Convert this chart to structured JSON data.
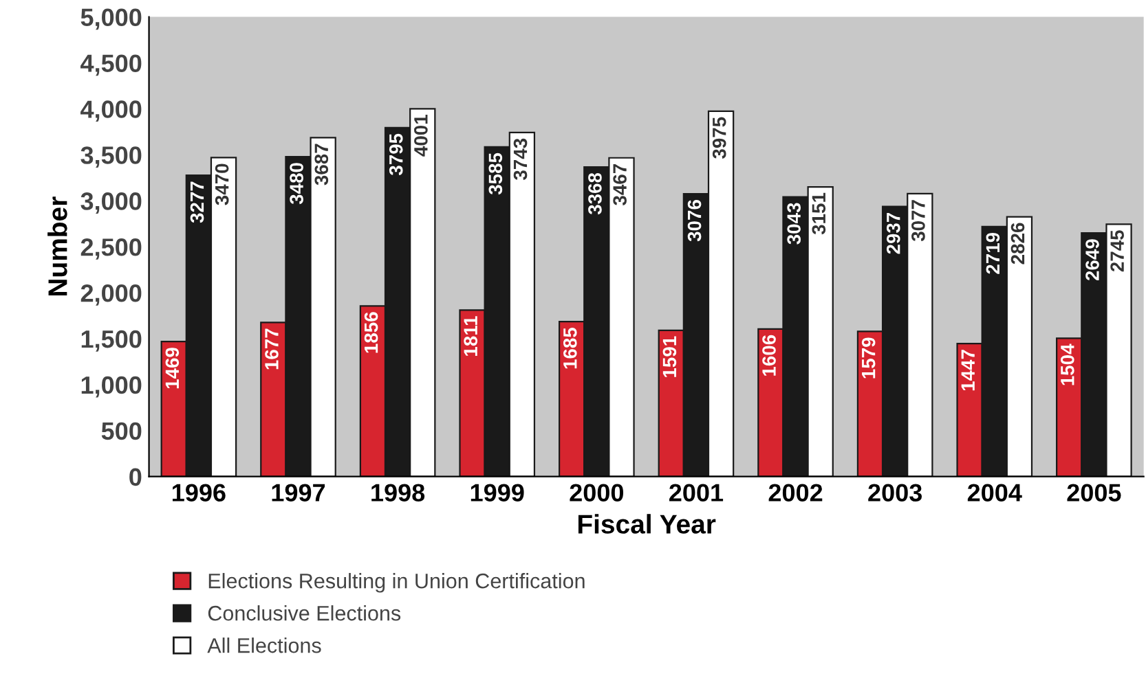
{
  "chart_data": {
    "type": "bar",
    "xlabel": "Fiscal Year",
    "ylabel": "Number",
    "categories": [
      "1996",
      "1997",
      "1998",
      "1999",
      "2000",
      "2001",
      "2002",
      "2003",
      "2004",
      "2005"
    ],
    "series": [
      {
        "name": "Elections Resulting in Union Certification",
        "color": "#d7252f",
        "values": [
          1469,
          1677,
          1856,
          1811,
          1685,
          1591,
          1606,
          1579,
          1447,
          1504
        ]
      },
      {
        "name": "Conclusive Elections",
        "color": "#1a1a1a",
        "values": [
          3277,
          3480,
          3795,
          3585,
          3368,
          3076,
          3043,
          2937,
          2719,
          2649
        ]
      },
      {
        "name": "All Elections",
        "color": "#ffffff",
        "values": [
          3470,
          3687,
          4001,
          3743,
          3467,
          3975,
          3151,
          3077,
          2826,
          2745
        ]
      }
    ],
    "ylim": [
      0,
      5000
    ],
    "yticks": [
      {
        "value": 0,
        "label": "0"
      },
      {
        "value": 500,
        "label": "500"
      },
      {
        "value": 1000,
        "label": "1,000"
      },
      {
        "value": 1500,
        "label": "1,500"
      },
      {
        "value": 2000,
        "label": "2,000"
      },
      {
        "value": 2500,
        "label": "2,500"
      },
      {
        "value": 3000,
        "label": "3,000"
      },
      {
        "value": 3500,
        "label": "3,500"
      },
      {
        "value": 4000,
        "label": "4,000"
      },
      {
        "value": 4500,
        "label": "4,500"
      },
      {
        "value": 5000,
        "label": "5,000"
      }
    ],
    "data_labels": true,
    "grid": false,
    "legend": "bottom left"
  }
}
